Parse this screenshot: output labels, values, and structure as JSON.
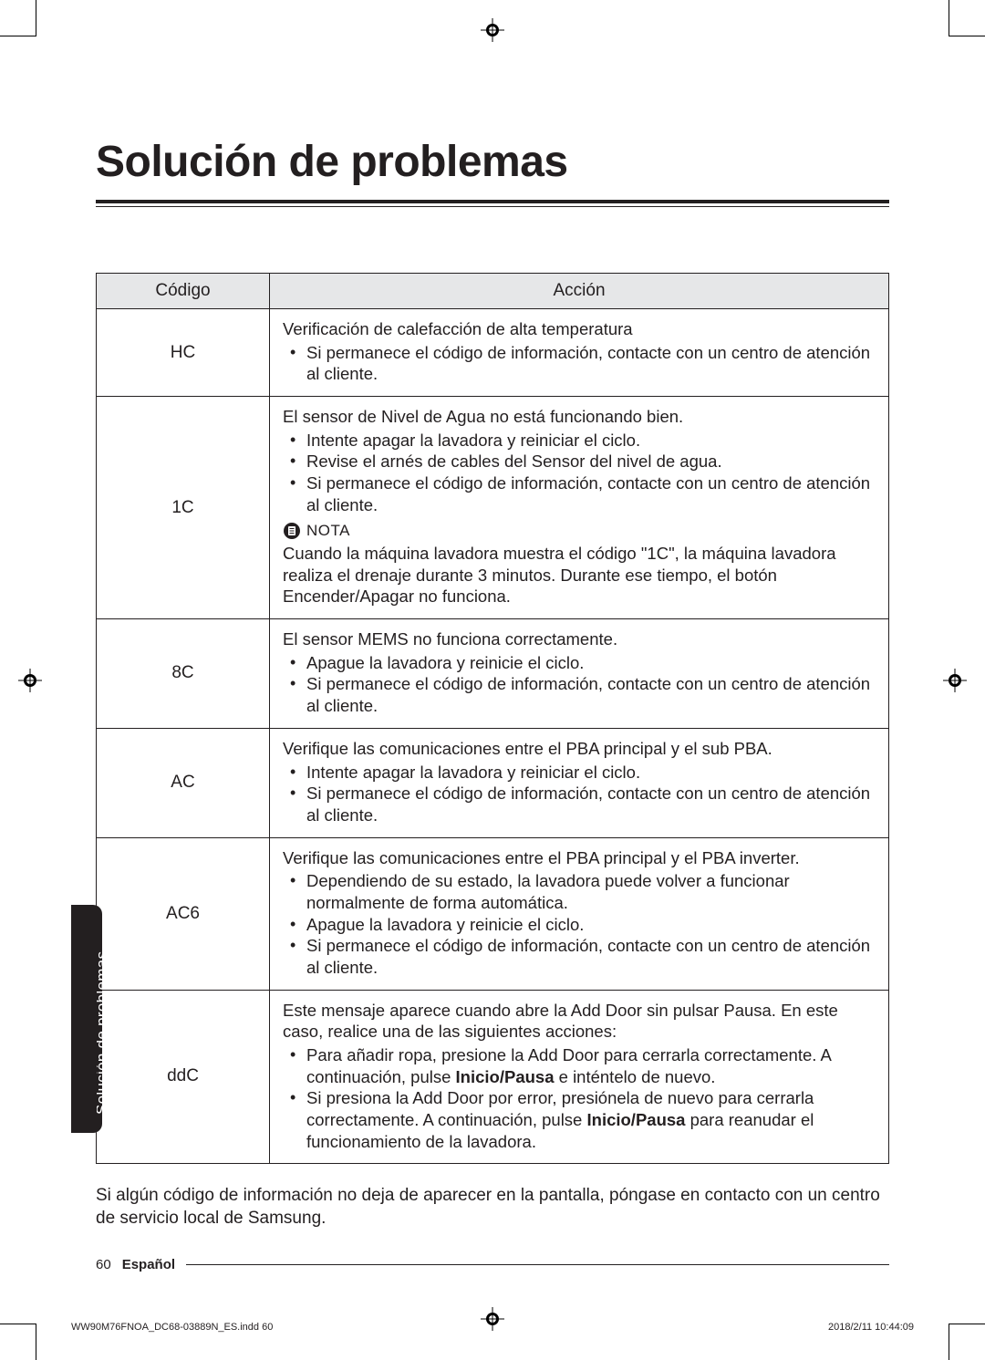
{
  "page": {
    "crop_color": "#000000",
    "background": "#ffffff",
    "text_color": "#231f20"
  },
  "heading": "Solución de problemas",
  "side_tab": "Solución de problemas",
  "table": {
    "header_bg": "#e6e7e8",
    "border_color": "#231f20",
    "columns": {
      "code": "Código",
      "action": "Acción"
    },
    "rows": [
      {
        "code": "HC",
        "title": "Verificación de calefacción de alta temperatura",
        "bullets": [
          "Si permanece el código de información, contacte con un centro de atención al cliente."
        ]
      },
      {
        "code": "1C",
        "title": "El sensor de Nivel de Agua no está funcionando bien.",
        "bullets": [
          "Intente apagar la lavadora y reiniciar el ciclo.",
          "Revise el arnés de cables del Sensor del nivel de agua.",
          "Si permanece el código de información, contacte con un centro de atención al cliente."
        ],
        "nota_label": "NOTA",
        "nota_body": "Cuando la máquina lavadora muestra el código \"1C\", la máquina lavadora realiza el drenaje durante 3 minutos. Durante ese tiempo, el botón Encender/Apagar no funciona."
      },
      {
        "code": "8C",
        "title": "El sensor MEMS no funciona correctamente.",
        "bullets": [
          "Apague la lavadora y reinicie el ciclo.",
          "Si permanece el código de información, contacte con un centro de atención al cliente."
        ]
      },
      {
        "code": "AC",
        "title": "Verifique las comunicaciones entre el PBA principal y el sub PBA.",
        "bullets": [
          "Intente apagar la lavadora y reiniciar el ciclo.",
          "Si permanece el código de información, contacte con un centro de atención al cliente."
        ]
      },
      {
        "code": "AC6",
        "title": "Verifique las comunicaciones entre el PBA principal y el PBA inverter.",
        "bullets": [
          "Dependiendo de su estado, la lavadora puede volver a funcionar normalmente de forma automática.",
          "Apague la lavadora y reinicie el ciclo.",
          "Si permanece el código de información, contacte con un centro de atención al cliente."
        ]
      },
      {
        "code": "ddC",
        "title": "Este mensaje aparece cuando abre la Add Door sin pulsar Pausa. En este caso, realice una de las siguientes acciones:",
        "bullets_html": [
          "Para añadir ropa, presione la Add Door para cerrarla correctamente. A continuación, pulse <span class=\"bold-inline\">Inicio/Pausa</span> e inténtelo de nuevo.",
          "Si presiona la Add Door por error, presiónela de nuevo para cerrarla correctamente. A continuación, pulse <span class=\"bold-inline\">Inicio/Pausa</span> para reanudar el funcionamiento de la lavadora."
        ]
      }
    ]
  },
  "after_note": "Si algún código de información no deja de aparecer en la pantalla, póngase en contacto con un centro de servicio local de Samsung.",
  "footer": {
    "page_number": "60",
    "lang": "Español"
  },
  "slug": {
    "left": "WW90M76FNOA_DC68-03889N_ES.indd   60",
    "right": "2018/2/11   10:44:09"
  }
}
